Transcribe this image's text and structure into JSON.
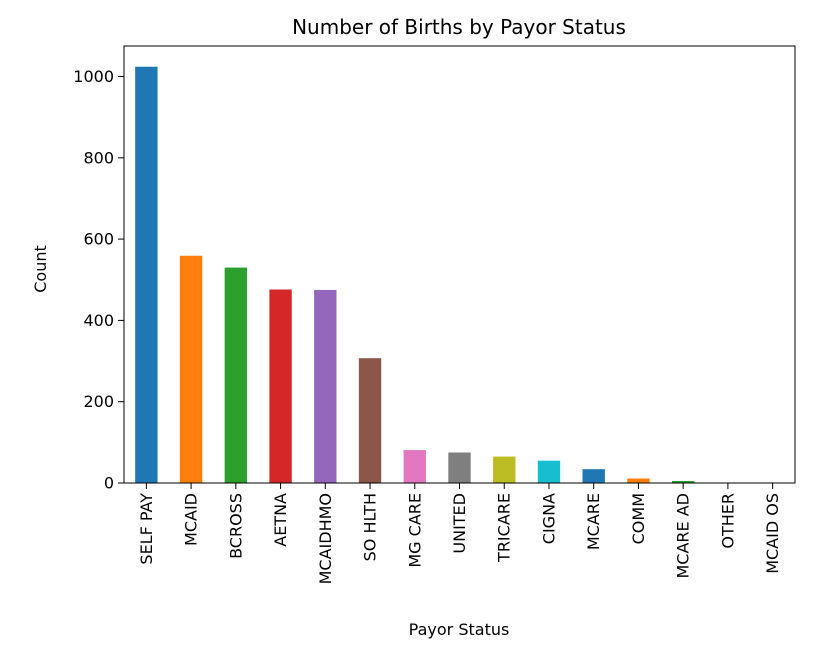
{
  "chart_data": {
    "type": "bar",
    "title": "Number of Births by Payor Status",
    "xlabel": "Payor Status",
    "ylabel": "Count",
    "ylim": [
      0,
      1075
    ],
    "yticks": [
      0,
      200,
      400,
      600,
      800,
      1000
    ],
    "grid": false,
    "legend": "none",
    "categories": [
      "SELF PAY",
      "MCAID",
      "BCROSS",
      "AETNA",
      "MCAIDHMO",
      "SO HLTH",
      "MG CARE",
      "UNITED",
      "TRICARE",
      "CIGNA",
      "MCARE",
      "COMM",
      "MCARE AD",
      "OTHER",
      "MCAID OS"
    ],
    "values": [
      1024,
      559,
      530,
      476,
      475,
      307,
      81,
      75,
      65,
      55,
      34,
      11,
      5,
      1,
      1
    ],
    "colors": [
      "#1f77b4",
      "#ff7f0e",
      "#2ca02c",
      "#d62728",
      "#9467bd",
      "#8c564b",
      "#e377c2",
      "#7f7f7f",
      "#bcbd22",
      "#17becf",
      "#1f77b4",
      "#ff7f0e",
      "#2ca02c",
      "#d62728",
      "#9467bd"
    ]
  }
}
